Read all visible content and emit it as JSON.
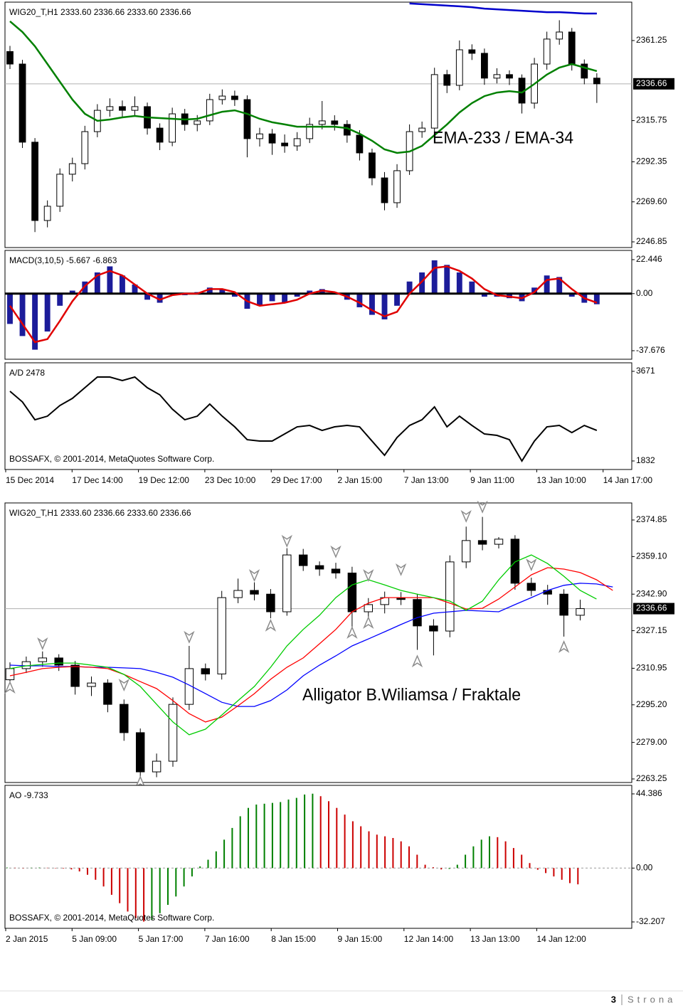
{
  "chart_data": [
    {
      "type": "candlestick",
      "title": "WIG20_T,H1  2333.60 2336.66 2333.60 2336.66",
      "annotation": "EMA-233 / EMA-34",
      "up_color": "#ffffff",
      "down_color": "#000000",
      "ohlc": [
        [
          2355.0,
          2358.2,
          2345.1,
          2347.9
        ],
        [
          2347.9,
          2350.3,
          2300.2,
          2303.5
        ],
        [
          2303.5,
          2305.8,
          2252.4,
          2259.0
        ],
        [
          2259.0,
          2270.4,
          2255.1,
          2267.1
        ],
        [
          2267.1,
          2288.6,
          2263.9,
          2285.3
        ],
        [
          2285.3,
          2294.7,
          2281.2,
          2291.3
        ],
        [
          2291.3,
          2312.8,
          2288.0,
          2309.5
        ],
        [
          2309.5,
          2325.1,
          2306.3,
          2321.6
        ],
        [
          2321.6,
          2328.4,
          2318.0,
          2323.7
        ],
        [
          2323.7,
          2327.2,
          2317.9,
          2321.6
        ],
        [
          2321.6,
          2329.5,
          2318.3,
          2323.7
        ],
        [
          2323.7,
          2326.0,
          2307.8,
          2311.5
        ],
        [
          2311.5,
          2314.2,
          2299.0,
          2303.5
        ],
        [
          2303.5,
          2323.1,
          2301.2,
          2319.6
        ],
        [
          2319.6,
          2322.4,
          2310.0,
          2313.6
        ],
        [
          2313.6,
          2318.9,
          2309.7,
          2315.6
        ],
        [
          2315.6,
          2331.0,
          2313.2,
          2327.7
        ],
        [
          2327.7,
          2333.5,
          2324.9,
          2329.7
        ],
        [
          2329.7,
          2332.8,
          2324.1,
          2327.7
        ],
        [
          2327.7,
          2330.1,
          2294.9,
          2305.5
        ],
        [
          2305.5,
          2311.7,
          2301.0,
          2308.2
        ],
        [
          2308.2,
          2311.0,
          2296.3,
          2303.0
        ],
        [
          2303.0,
          2307.9,
          2297.5,
          2301.4
        ],
        [
          2301.4,
          2309.2,
          2298.6,
          2305.5
        ],
        [
          2305.5,
          2317.4,
          2303.0,
          2313.6
        ],
        [
          2313.6,
          2326.9,
          2310.8,
          2315.6
        ],
        [
          2315.6,
          2318.8,
          2310.1,
          2313.6
        ],
        [
          2313.6,
          2316.0,
          2303.2,
          2307.5
        ],
        [
          2307.5,
          2310.3,
          2293.1,
          2297.4
        ],
        [
          2297.4,
          2299.8,
          2279.0,
          2283.2
        ],
        [
          2283.2,
          2286.5,
          2264.8,
          2269.1
        ],
        [
          2269.1,
          2291.0,
          2266.2,
          2287.3
        ],
        [
          2287.3,
          2313.6,
          2284.9,
          2309.5
        ],
        [
          2309.5,
          2315.2,
          2306.0,
          2311.5
        ],
        [
          2311.5,
          2345.8,
          2309.2,
          2341.9
        ],
        [
          2341.9,
          2344.6,
          2331.4,
          2335.8
        ],
        [
          2335.8,
          2361.3,
          2333.0,
          2356.0
        ],
        [
          2356.0,
          2359.1,
          2350.2,
          2354.0
        ],
        [
          2354.0,
          2356.7,
          2336.1,
          2339.9
        ],
        [
          2339.9,
          2345.5,
          2336.9,
          2341.9
        ],
        [
          2341.9,
          2344.3,
          2336.0,
          2339.9
        ],
        [
          2339.9,
          2342.0,
          2319.8,
          2325.7
        ],
        [
          2325.7,
          2351.4,
          2322.6,
          2347.9
        ],
        [
          2347.9,
          2366.3,
          2344.7,
          2362.1
        ],
        [
          2362.1,
          2372.8,
          2358.9,
          2366.1
        ],
        [
          2366.1,
          2368.4,
          2344.2,
          2347.9
        ],
        [
          2347.9,
          2350.5,
          2336.4,
          2339.9
        ],
        [
          2339.9,
          2342.7,
          2325.8,
          2336.66
        ]
      ],
      "series": [
        {
          "name": "EMA-233",
          "color": "#0000cc",
          "values": [
            null,
            null,
            null,
            null,
            null,
            null,
            null,
            null,
            null,
            null,
            null,
            null,
            null,
            null,
            null,
            null,
            null,
            null,
            null,
            null,
            null,
            null,
            null,
            null,
            null,
            null,
            null,
            null,
            null,
            null,
            null,
            null,
            2382.3,
            2381.9,
            2381.5,
            2381.1,
            2380.7,
            2380.2,
            2379.4,
            2379.0,
            2378.6,
            2378.2,
            2377.8,
            2377.4,
            2377.4,
            2377.0,
            2376.6,
            2376.6
          ]
        },
        {
          "name": "EMA-34",
          "color": "#008000",
          "values": [
            2372.2,
            2366.1,
            2358.0,
            2347.9,
            2337.8,
            2327.7,
            2319.6,
            2315.6,
            2316.4,
            2317.6,
            2318.4,
            2317.6,
            2317.2,
            2316.8,
            2316.4,
            2316.8,
            2318.8,
            2320.8,
            2321.6,
            2319.6,
            2316.8,
            2314.8,
            2313.6,
            2312.3,
            2312.3,
            2312.3,
            2312.3,
            2311.5,
            2308.3,
            2304.3,
            2299.4,
            2297.4,
            2298.2,
            2301.4,
            2307.5,
            2313.6,
            2320.4,
            2325.7,
            2329.7,
            2331.7,
            2332.5,
            2331.7,
            2336.6,
            2341.9,
            2345.9,
            2347.9,
            2345.9,
            2343.9
          ]
        }
      ],
      "ylim": [
        2243.62,
        2383.08
      ],
      "yticks": [
        2361.25,
        2315.75,
        2292.35,
        {
          "value": 2269.6,
          "label": "2269.60"
        },
        2246.85
      ],
      "last_price": 2336.66
    },
    {
      "type": "bar",
      "title": "MACD(3,10,5) -5.667 -6.863",
      "color": "#1c1c9a",
      "values": [
        -20,
        -28,
        -37,
        -25,
        -8,
        2,
        8,
        14,
        18,
        12,
        6,
        -4,
        -6,
        0,
        -1,
        1,
        4,
        3,
        -2,
        -10,
        -8,
        -5,
        -6,
        -2,
        2,
        3,
        1,
        -4,
        -9,
        -14,
        -17,
        -8,
        8,
        14,
        22,
        19,
        14,
        8,
        -2,
        -2,
        -3,
        -5,
        4,
        12,
        11,
        -2,
        -6,
        -7
      ],
      "series": [
        {
          "color": "#e00000",
          "values": [
            -8,
            -20,
            -32,
            -30,
            -18,
            -5,
            5,
            12,
            15,
            12,
            6,
            0,
            -4,
            -1,
            0,
            0,
            3,
            3,
            1,
            -5,
            -8,
            -7,
            -6,
            -4,
            0,
            2,
            1,
            -2,
            -6,
            -11,
            -15,
            -12,
            0,
            8,
            17,
            18,
            15,
            10,
            3,
            -1,
            -2,
            -3,
            1,
            9,
            10,
            3,
            -3,
            -6
          ]
        }
      ],
      "ylim": [
        -43.31,
        28.55
      ],
      "yticks": [
        22.446,
        {
          "value": 0,
          "label": "0.00"
        },
        -37.676
      ],
      "zero_line": "solid"
    },
    {
      "type": "line",
      "title": "A/D 2478",
      "note": "BOSSAFX, © 2001-2014, MetaQuotes Software Corp.",
      "color": "#000000",
      "values": [
        3262,
        3043,
        2678,
        2751,
        2970,
        3116,
        3335,
        3554,
        3554,
        3481,
        3554,
        3335,
        3189,
        2897,
        2678,
        2751,
        2999,
        2751,
        2532,
        2269,
        2240,
        2240,
        2386,
        2532,
        2561,
        2459,
        2532,
        2561,
        2532,
        2240,
        1948,
        2313,
        2561,
        2678,
        2941,
        2532,
        2751,
        2561,
        2386,
        2357,
        2269,
        1831,
        2240,
        2532,
        2561,
        2415,
        2561,
        2459
      ],
      "ylim": [
        1657,
        3846
      ],
      "yticks": [
        3671,
        1832
      ],
      "xtick_labels": [
        "15 Dec 2014",
        "17 Dec 14:00",
        "19 Dec 12:00",
        "23 Dec 10:00",
        "29 Dec 17:00",
        "2 Jan 15:00",
        "7 Jan 13:00",
        "9 Jan 11:00",
        "13 Jan 10:00",
        "14 Jan 17:00"
      ]
    },
    {
      "type": "candlestick",
      "title": "WIG20_T,H1  2333.60 2336.66 2333.60 2336.66",
      "annotation": "Alligator B.Wiliamsa / Fraktale",
      "up_color": "#ffffff",
      "down_color": "#000000",
      "ohlc": [
        [
          2306.0,
          2313.5,
          2303.2,
          2310.8
        ],
        [
          2310.8,
          2316.0,
          2308.9,
          2313.8
        ],
        [
          2313.8,
          2318.2,
          2311.6,
          2315.4
        ],
        [
          2315.4,
          2317.0,
          2309.8,
          2312.3
        ],
        [
          2312.3,
          2314.1,
          2299.6,
          2303.1
        ],
        [
          2303.1,
          2307.4,
          2299.0,
          2304.6
        ],
        [
          2304.6,
          2306.2,
          2292.0,
          2295.4
        ],
        [
          2295.4,
          2297.5,
          2279.7,
          2283.2
        ],
        [
          2283.2,
          2285.0,
          2262.5,
          2266.3
        ],
        [
          2266.3,
          2274.2,
          2264.0,
          2270.9
        ],
        [
          2270.9,
          2298.4,
          2268.5,
          2295.4
        ],
        [
          2295.4,
          2320.6,
          2293.0,
          2310.8
        ],
        [
          2310.8,
          2313.0,
          2305.7,
          2308.5
        ],
        [
          2308.5,
          2344.3,
          2306.1,
          2341.4
        ],
        [
          2341.4,
          2349.6,
          2339.0,
          2344.5
        ],
        [
          2344.5,
          2348.0,
          2340.2,
          2342.9
        ],
        [
          2342.9,
          2345.1,
          2332.5,
          2335.3
        ],
        [
          2335.3,
          2362.7,
          2333.6,
          2359.8
        ],
        [
          2359.8,
          2362.4,
          2352.9,
          2355.2
        ],
        [
          2355.2,
          2357.0,
          2350.8,
          2353.7
        ],
        [
          2353.7,
          2356.4,
          2349.6,
          2352.0
        ],
        [
          2352.0,
          2354.7,
          2326.3,
          2335.3
        ],
        [
          2335.3,
          2341.2,
          2331.5,
          2338.4
        ],
        [
          2338.4,
          2344.0,
          2334.6,
          2341.4
        ],
        [
          2341.4,
          2343.8,
          2338.2,
          2340.6
        ],
        [
          2340.6,
          2343.0,
          2318.9,
          2329.2
        ],
        [
          2329.2,
          2332.1,
          2316.5,
          2327.0
        ],
        [
          2327.0,
          2359.6,
          2324.3,
          2356.8
        ],
        [
          2356.8,
          2372.0,
          2354.1,
          2366.0
        ],
        [
          2366.0,
          2376.2,
          2361.8,
          2364.4
        ],
        [
          2364.4,
          2367.5,
          2362.6,
          2366.6
        ],
        [
          2366.6,
          2368.3,
          2344.8,
          2347.6
        ],
        [
          2347.6,
          2350.0,
          2342.1,
          2344.5
        ],
        [
          2344.5,
          2346.9,
          2338.3,
          2342.9
        ],
        [
          2342.9,
          2345.0,
          2324.6,
          2333.8
        ],
        [
          2333.8,
          2340.5,
          2331.6,
          2336.66
        ],
        null,
        null
      ],
      "series": [
        {
          "color": "#0000ff",
          "values": [
            2312.3,
            2312.0,
            2312.0,
            2311.7,
            2311.7,
            2311.4,
            2311.4,
            2311.1,
            2310.8,
            2309.2,
            2307.1,
            2303.7,
            2300.0,
            2296.3,
            2294.5,
            2294.5,
            2297.0,
            2301.6,
            2307.7,
            2312.3,
            2316.3,
            2320.6,
            2323.6,
            2326.7,
            2329.8,
            2332.8,
            2334.7,
            2335.3,
            2335.9,
            2335.6,
            2335.3,
            2338.4,
            2341.4,
            2344.5,
            2346.7,
            2347.6,
            2347.3,
            2346.0
          ]
        },
        {
          "color": "#ff0000",
          "values": [
            2307.7,
            2309.2,
            2310.8,
            2311.4,
            2311.7,
            2311.4,
            2310.8,
            2308.3,
            2305.2,
            2302.2,
            2297.0,
            2291.4,
            2287.8,
            2289.9,
            2294.8,
            2300.0,
            2306.2,
            2311.4,
            2315.4,
            2321.5,
            2327.7,
            2335.3,
            2339.0,
            2341.4,
            2341.4,
            2341.4,
            2341.4,
            2339.0,
            2336.5,
            2336.8,
            2340.8,
            2346.0,
            2351.2,
            2354.3,
            2353.7,
            2352.2,
            2349.1,
            2344.5
          ]
        },
        {
          "color": "#00cc00",
          "values": [
            2310.8,
            2312.0,
            2312.6,
            2313.2,
            2313.2,
            2312.3,
            2311.4,
            2308.3,
            2303.1,
            2295.4,
            2287.8,
            2282.3,
            2284.7,
            2290.8,
            2297.0,
            2303.1,
            2311.4,
            2320.6,
            2327.7,
            2333.8,
            2341.4,
            2346.9,
            2349.1,
            2346.9,
            2344.5,
            2342.9,
            2341.4,
            2339.9,
            2335.9,
            2339.9,
            2349.1,
            2356.8,
            2359.8,
            2356.1,
            2350.6,
            2344.5,
            2340.8,
            null
          ]
        }
      ],
      "fractal_color": "#8c8c8c",
      "fractals_up": {
        "x": [
          2,
          7,
          11,
          15,
          17,
          20,
          22,
          24,
          28,
          29,
          32
        ],
        "values": [
          2321.8,
          2304.0,
          2324.6,
          2351.2,
          2366.0,
          2361.4,
          2351.2,
          2353.7,
          2376.7,
          2380.7,
          2355.8
        ]
      },
      "fractals_down": {
        "x": [
          0,
          8,
          16,
          21,
          22,
          25,
          34
        ],
        "values": [
          2302.5,
          2261.7,
          2329.2,
          2326.1,
          2330.4,
          2313.8,
          2320.0
        ]
      },
      "ylim": [
        2261.72,
        2382.21
      ],
      "yticks": [
        2374.85,
        {
          "value": 2359.1,
          "label": "2359.10"
        },
        {
          "value": 2342.9,
          "label": "2342.90"
        },
        2327.15,
        2310.95,
        {
          "value": 2295.2,
          "label": "2295.20"
        },
        {
          "value": 2279,
          "label": "2279.00"
        },
        2263.25
      ],
      "last_price": 2336.66
    },
    {
      "type": "bar",
      "title": "AO -9.733",
      "note": "BOSSAFX, © 2001-2014, MetaQuotes Software Corp.",
      "up_color": "#008000",
      "down_color": "#cc0000",
      "values": [
        0.3,
        0.2,
        0.1,
        0.2,
        0.3,
        0.2,
        0.1,
        -0.3,
        -0.8,
        -2,
        -4,
        -7,
        -11,
        -16,
        -21,
        -26,
        -30,
        -32,
        -31,
        -27,
        -22,
        -17,
        -11,
        -5,
        1,
        5,
        10,
        17,
        24,
        31,
        36,
        38,
        38.5,
        39,
        39.5,
        41,
        42,
        44,
        44.5,
        43,
        40,
        36,
        32,
        28,
        25,
        22,
        20,
        19,
        18,
        16,
        13,
        8,
        2,
        0.5,
        -0.8,
        -0.5,
        2,
        8,
        13,
        17,
        19,
        18.5,
        16,
        12,
        8,
        3,
        -1,
        -3,
        -5,
        -7,
        -9,
        -9.733
      ],
      "ylim": [
        -36.04,
        49.49
      ],
      "yticks": [
        44.386,
        {
          "value": 0,
          "label": "0.00"
        },
        -32.207
      ],
      "zero_line": "dashed",
      "xtick_labels": [
        "2 Jan 2015",
        "5 Jan 09:00",
        "5 Jan 17:00",
        "7 Jan 16:00",
        "8 Jan 15:00",
        "9 Jan 15:00",
        "12 Jan 14:00",
        "13 Jan 13:00",
        "14 Jan 12:00"
      ]
    }
  ],
  "footer": {
    "page": "3",
    "label": "Strona"
  }
}
